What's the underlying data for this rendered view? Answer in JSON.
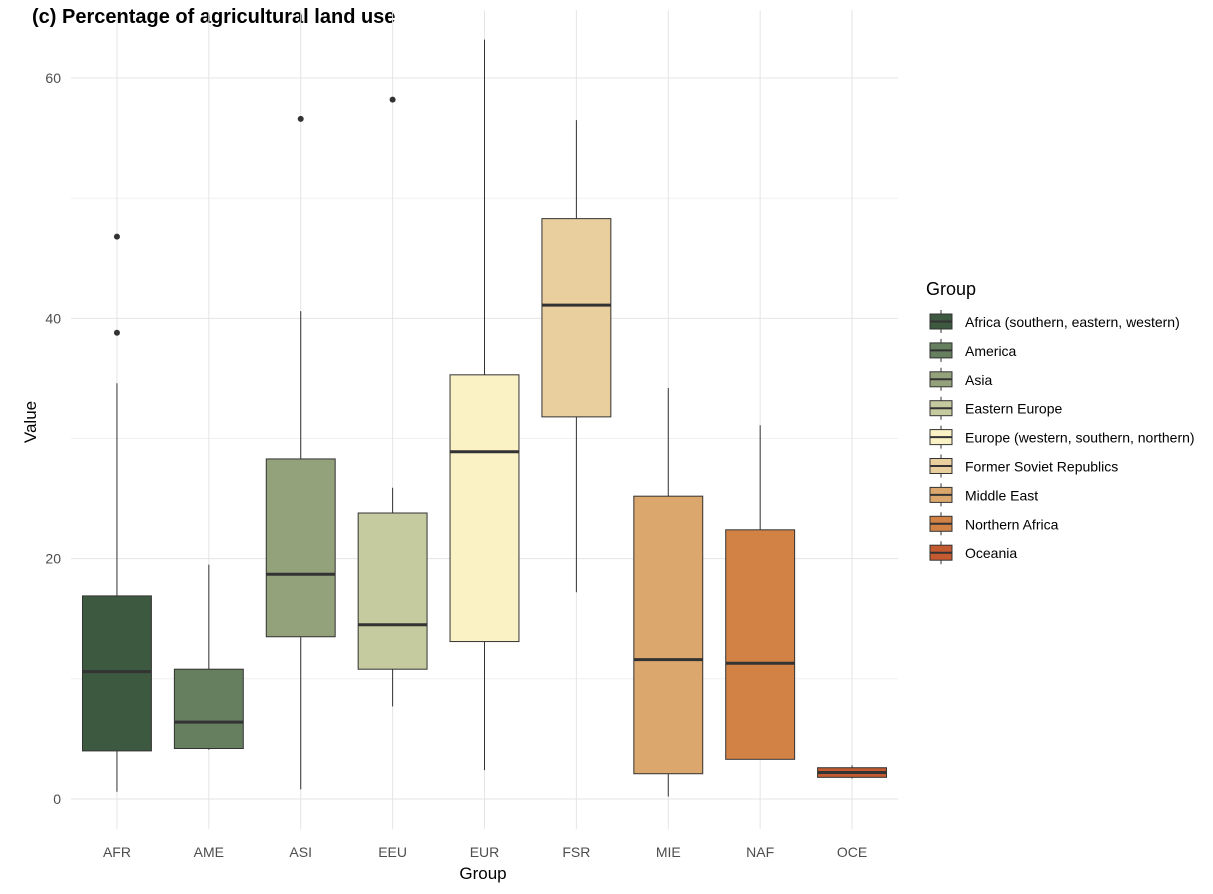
{
  "chart_data": {
    "type": "boxplot",
    "title": "(c) Percentage of agricultural land use",
    "xlabel": "Group",
    "ylabel": "Value",
    "ylim": [
      -2.5,
      63.5
    ],
    "yticks": [
      0,
      20,
      40,
      60
    ],
    "grid": true,
    "legend": {
      "title": "Group",
      "placement": "right",
      "entries": [
        {
          "label": "Africa (southern, eastern, western)",
          "color": "#3d5940"
        },
        {
          "label": "America",
          "color": "#657f5f"
        },
        {
          "label": "Asia",
          "color": "#94a27c"
        },
        {
          "label": "Eastern Europe",
          "color": "#c5cb9f"
        },
        {
          "label": "Europe (western, southern, northern)",
          "color": "#faf1c4"
        },
        {
          "label": "Former Soviet Republics",
          "color": "#e9cf9d"
        },
        {
          "label": "Middle East",
          "color": "#dba76d"
        },
        {
          "label": "Northern Africa",
          "color": "#d28245"
        },
        {
          "label": "Oceania",
          "color": "#c45a30"
        }
      ]
    },
    "categories": [
      "AFR",
      "AME",
      "ASI",
      "EEU",
      "EUR",
      "FSR",
      "MIE",
      "NAF",
      "OCE"
    ],
    "boxes": [
      {
        "group": "AFR",
        "min": 0.6,
        "q1": 4.0,
        "median": 10.6,
        "q3": 16.9,
        "max": 34.6,
        "outliers": [
          38.8,
          46.8
        ],
        "color": "#3d5940"
      },
      {
        "group": "AME",
        "min": 4.1,
        "q1": 4.2,
        "median": 6.4,
        "q3": 10.8,
        "max": 19.5,
        "outliers": [],
        "color": "#657f5f"
      },
      {
        "group": "ASI",
        "min": 0.8,
        "q1": 13.5,
        "median": 18.7,
        "q3": 28.3,
        "max": 40.6,
        "outliers": [
          56.6
        ],
        "color": "#94a27c"
      },
      {
        "group": "EEU",
        "min": 7.7,
        "q1": 10.8,
        "median": 14.5,
        "q3": 23.8,
        "max": 25.9,
        "outliers": [
          58.2
        ],
        "color": "#c5cb9f"
      },
      {
        "group": "EUR",
        "min": 2.4,
        "q1": 13.1,
        "median": 28.9,
        "q3": 35.3,
        "max": 63.2,
        "outliers": [],
        "color": "#faf1c4"
      },
      {
        "group": "FSR",
        "min": 17.2,
        "q1": 31.8,
        "median": 41.1,
        "q3": 48.3,
        "max": 56.5,
        "outliers": [],
        "color": "#e9cf9d"
      },
      {
        "group": "MIE",
        "min": 0.2,
        "q1": 2.1,
        "median": 11.6,
        "q3": 25.2,
        "max": 34.2,
        "outliers": [],
        "color": "#dba76d"
      },
      {
        "group": "NAF",
        "min": 3.3,
        "q1": 3.3,
        "median": 11.3,
        "q3": 22.4,
        "max": 31.1,
        "outliers": [],
        "color": "#d28245"
      },
      {
        "group": "OCE",
        "min": 1.7,
        "q1": 1.8,
        "median": 2.2,
        "q3": 2.6,
        "max": 2.8,
        "outliers": [],
        "color": "#c45a30"
      }
    ]
  }
}
